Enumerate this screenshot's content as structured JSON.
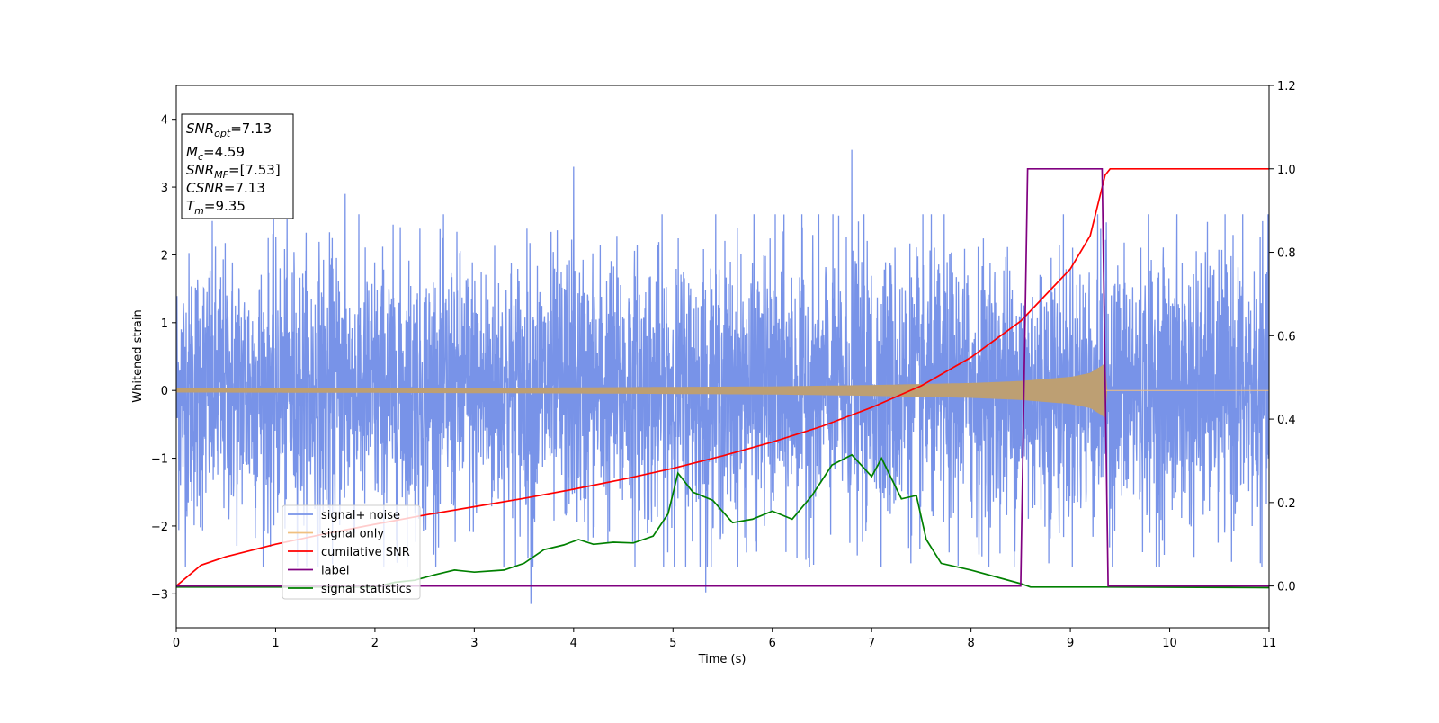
{
  "chart_data": {
    "type": "line",
    "xlabel": "Time (s)",
    "ylabel": "Whitened strain",
    "xlim": [
      0,
      11
    ],
    "ylim_left": [
      -3.5,
      4.5
    ],
    "ylim_right": [
      -0.1,
      1.2
    ],
    "x_ticks": [
      0,
      1,
      2,
      3,
      4,
      5,
      6,
      7,
      8,
      9,
      10,
      11
    ],
    "y_ticks_left": [
      -3,
      -2,
      -1,
      0,
      1,
      2,
      3,
      4
    ],
    "y_ticks_right": [
      0.0,
      0.2,
      0.4,
      0.6,
      0.8,
      1.0,
      1.2
    ],
    "grid": false,
    "legend_placement": "lower-left",
    "info_box": {
      "placement": "top-left",
      "lines": [
        {
          "name": "SNR",
          "sub": "opt",
          "value": "=7.13"
        },
        {
          "name": "M",
          "sub": "c",
          "value": "=4.59"
        },
        {
          "name": "SNR",
          "sub": "MF",
          "value": "=[7.53]"
        },
        {
          "name": "CSNR",
          "sub": "",
          "value": "=7.13"
        },
        {
          "name": "T",
          "sub": "m",
          "value": "=9.35"
        }
      ]
    },
    "series": [
      {
        "name": "signal+ noise",
        "color": "#7893e8",
        "axis": "left",
        "noise_sigma": 1.0,
        "note_peaks": [
          [
            1.7,
            2.9
          ],
          [
            4.0,
            3.3
          ],
          [
            6.8,
            3.55
          ],
          [
            3.57,
            -3.15
          ],
          [
            5.33,
            -2.98
          ]
        ]
      },
      {
        "name": "signal only",
        "color": "#f0c080",
        "axis": "left",
        "envelope": {
          "x": [
            0,
            2,
            4,
            6,
            7,
            8,
            8.5,
            9.0,
            9.2,
            9.3,
            9.35,
            9.36,
            11
          ],
          "amplitude": [
            0.03,
            0.035,
            0.045,
            0.06,
            0.08,
            0.11,
            0.14,
            0.2,
            0.26,
            0.35,
            0.4,
            0.0,
            0.0
          ]
        }
      },
      {
        "name": "cumilative SNR",
        "color": "#ff0000",
        "axis": "right",
        "x": [
          0,
          0.25,
          0.5,
          1,
          1.5,
          2,
          2.5,
          3,
          3.5,
          4,
          4.5,
          5,
          5.5,
          6,
          6.5,
          7,
          7.5,
          8,
          8.5,
          9,
          9.2,
          9.35,
          9.4,
          11
        ],
        "values": [
          0.0,
          0.05,
          0.07,
          0.1,
          0.125,
          0.148,
          0.17,
          0.19,
          0.21,
          0.232,
          0.256,
          0.282,
          0.312,
          0.345,
          0.383,
          0.428,
          0.48,
          0.548,
          0.635,
          0.76,
          0.84,
          0.985,
          1.0,
          1.0
        ]
      },
      {
        "name": "label",
        "color": "#800080",
        "axis": "right",
        "x": [
          0,
          8.5,
          8.57,
          9.32,
          9.38,
          11
        ],
        "values": [
          0,
          0,
          1,
          1,
          0,
          0
        ]
      },
      {
        "name": "signal statistics",
        "color": "#008000",
        "axis": "left",
        "x": [
          0,
          2.0,
          2.2,
          2.4,
          2.6,
          2.8,
          3.0,
          3.3,
          3.5,
          3.7,
          3.9,
          4.05,
          4.2,
          4.4,
          4.6,
          4.8,
          4.95,
          5.05,
          5.2,
          5.4,
          5.6,
          5.8,
          6.0,
          6.2,
          6.4,
          6.6,
          6.8,
          7.0,
          7.1,
          7.3,
          7.45,
          7.55,
          7.7,
          8.0,
          8.5,
          8.6,
          9.4,
          11
        ],
        "values": [
          -2.9,
          -2.9,
          -2.83,
          -2.8,
          -2.72,
          -2.65,
          -2.68,
          -2.65,
          -2.55,
          -2.35,
          -2.28,
          -2.2,
          -2.27,
          -2.24,
          -2.25,
          -2.15,
          -1.82,
          -1.22,
          -1.5,
          -1.62,
          -1.95,
          -1.9,
          -1.78,
          -1.9,
          -1.55,
          -1.1,
          -0.95,
          -1.27,
          -1.0,
          -1.6,
          -1.55,
          -2.2,
          -2.55,
          -2.65,
          -2.85,
          -2.9,
          -2.9,
          -2.91
        ]
      }
    ]
  }
}
